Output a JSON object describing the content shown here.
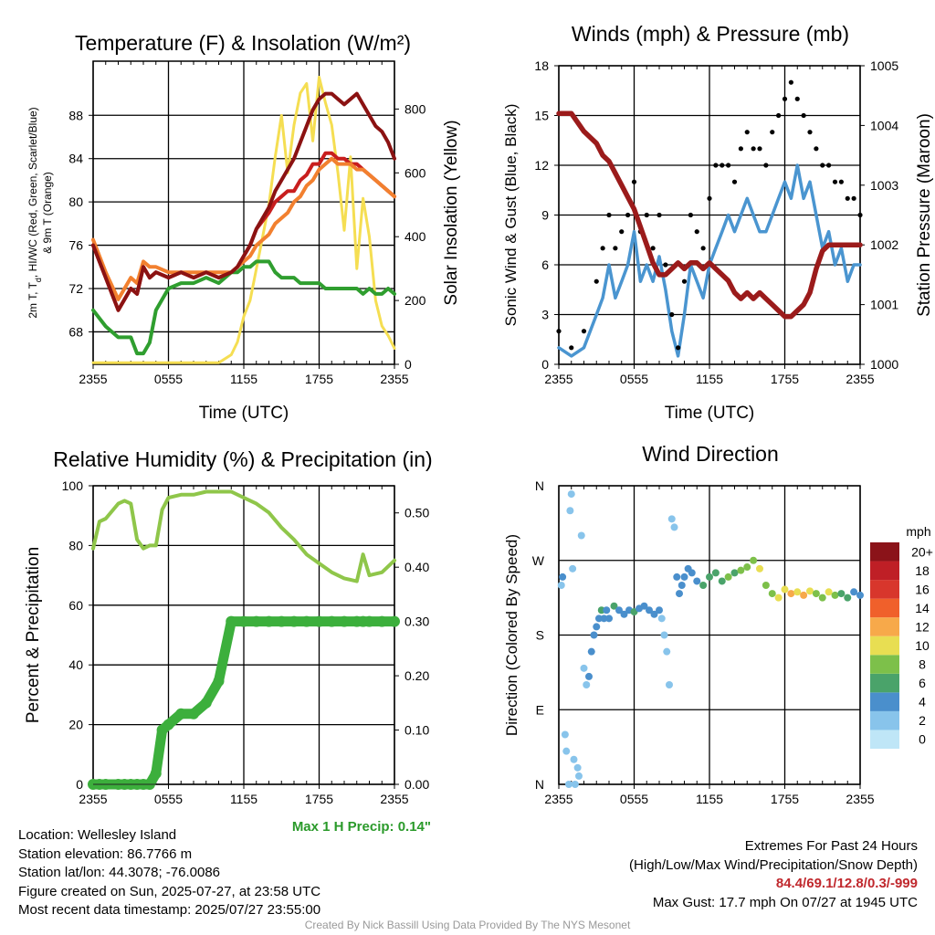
{
  "colors": {
    "temp_2m": "#c81e1e",
    "dewpoint": "#8b1212",
    "hiwc": "#2f9e2f",
    "temp_9m": "#f2802f",
    "insolation": "#f5de52",
    "wind_sonic": "#4a95d0",
    "gust": "#000000",
    "pressure": "#9b1b1b",
    "rh": "#8fc64a",
    "precip": "#3caf3c",
    "maxprecip_text": "#2a9a2a",
    "extremes_text": "#c0282d"
  },
  "chart_data": [
    {
      "id": "temperature",
      "type": "line",
      "title": "Temperature (F) & Insolation (W/m²)",
      "xlabel": "Time (UTC)",
      "ylabel": "2m T, Td, HI/WC (Red, Green, Scarlet/Blue) & 9m T (Orange)",
      "ylabel_line1": "2m T, T",
      "ylabel_sub": "d",
      "ylabel_line1_rest": ", HI/WC (Red, Green, Scarlet/Blue)",
      "ylabel_line2": "& 9m T (Orange)",
      "y2label": "Solar Insolation (Yellow)",
      "x_ticks": [
        "2355",
        "0555",
        "1155",
        "1755",
        "2355"
      ],
      "ylim": [
        65,
        93
      ],
      "y_ticks": [
        "68",
        "72",
        "76",
        "80",
        "84",
        "88"
      ],
      "y2lim": [
        0,
        950
      ],
      "y2_ticks": [
        "0",
        "200",
        "400",
        "600",
        "800"
      ],
      "x_hours": [
        0,
        1,
        2,
        3,
        3.5,
        4,
        4.5,
        5,
        6,
        7,
        8,
        9,
        10,
        11,
        11.5,
        12,
        12.5,
        13,
        14,
        14.5,
        15,
        15.5,
        16,
        16.5,
        17,
        17.5,
        18,
        18.5,
        19,
        19.5,
        20,
        20.5,
        21,
        21.5,
        22,
        22.5,
        23,
        23.5,
        24
      ],
      "series": [
        {
          "name": "2m T",
          "color_key": "temp_2m",
          "values": [
            76,
            73,
            70,
            72,
            71.5,
            74,
            73,
            73.5,
            73,
            73.5,
            73,
            73.5,
            73,
            73.5,
            74,
            75,
            76,
            77.5,
            79,
            80,
            80.5,
            81,
            81,
            82,
            82.5,
            83.5,
            83.5,
            84.5,
            84.5,
            84,
            84,
            83.5,
            83.5,
            83,
            82.5,
            82,
            81.5,
            81,
            80.5
          ]
        },
        {
          "name": "9m T",
          "color_key": "temp_9m",
          "values": [
            76.5,
            73.5,
            71,
            73,
            72.5,
            74.5,
            74,
            74,
            73.5,
            73.5,
            73.5,
            73.5,
            73.5,
            73.5,
            74,
            74.5,
            75,
            76,
            77,
            78,
            78.5,
            79,
            80,
            80.5,
            81.5,
            82,
            83,
            83.5,
            84,
            83.5,
            83.5,
            83.5,
            83,
            83,
            82.5,
            82,
            81.5,
            81,
            80.5
          ]
        },
        {
          "name": "Td",
          "color_key": "hiwc",
          "values": [
            70,
            68.5,
            67.5,
            67.5,
            66,
            66,
            67,
            70,
            72,
            72.5,
            72.5,
            73,
            72.5,
            73.5,
            73.5,
            74,
            74,
            74.5,
            74.5,
            73.5,
            73,
            73,
            73,
            72.5,
            72.5,
            72.5,
            72.5,
            72,
            72,
            72,
            72,
            72,
            72,
            71.5,
            72,
            71.5,
            71.5,
            72,
            71.5
          ]
        },
        {
          "name": "HI",
          "color_key": "dewpoint",
          "values": [
            76,
            73,
            70,
            72,
            71.5,
            74,
            73,
            73.5,
            73,
            73.5,
            73,
            73.5,
            73,
            73.5,
            74,
            75,
            76,
            77.5,
            79.5,
            81,
            82,
            83,
            84,
            85.5,
            87,
            88.5,
            89.5,
            90,
            90,
            89.5,
            89,
            89.5,
            90,
            89,
            88,
            87,
            86.5,
            85.5,
            84
          ]
        },
        {
          "name": "Insolation",
          "color_key": "insolation",
          "axis": "y2",
          "values": [
            5,
            5,
            5,
            5,
            5,
            5,
            5,
            5,
            5,
            5,
            5,
            5,
            5,
            30,
            70,
            150,
            200,
            300,
            500,
            650,
            780,
            600,
            750,
            850,
            880,
            700,
            900,
            820,
            750,
            600,
            420,
            650,
            300,
            520,
            400,
            200,
            120,
            90,
            50
          ]
        }
      ]
    },
    {
      "id": "winds",
      "type": "line",
      "title": "Winds (mph) & Pressure (mb)",
      "xlabel": "Time (UTC)",
      "ylabel": "Sonic Wind & Gust (Blue, Black)",
      "y2label": "Station Pressure (Maroon)",
      "x_ticks": [
        "2355",
        "0555",
        "1155",
        "1755",
        "2355"
      ],
      "ylim": [
        0,
        18
      ],
      "y_ticks": [
        "0",
        "3",
        "6",
        "9",
        "12",
        "15",
        "18"
      ],
      "y2lim": [
        1000,
        1005
      ],
      "y2_ticks": [
        "1000",
        "1001",
        "1002",
        "1003",
        "1004",
        "1005"
      ],
      "x_hours": [
        0,
        1,
        2,
        3,
        3.5,
        4,
        4.5,
        5,
        5.5,
        6,
        6.5,
        7,
        7.5,
        8,
        8.5,
        9,
        9.5,
        10,
        10.5,
        11,
        11.5,
        12,
        12.5,
        13,
        13.5,
        14,
        14.5,
        15,
        15.5,
        16,
        16.5,
        17,
        17.5,
        18,
        18.5,
        19,
        19.5,
        20,
        20.5,
        21,
        21.5,
        22,
        22.5,
        23,
        23.5,
        24
      ],
      "series": [
        {
          "name": "Sonic Wind",
          "color_key": "wind_sonic",
          "values": [
            1,
            0.5,
            1,
            3,
            4,
            6,
            4,
            5,
            6,
            8,
            5,
            6,
            5,
            6.5,
            4.5,
            2,
            0.5,
            3,
            6,
            5,
            4,
            6,
            7,
            8,
            9,
            8,
            9,
            10,
            9,
            8,
            8,
            9,
            10,
            11,
            10,
            12,
            10,
            11,
            9,
            7,
            8,
            6,
            7,
            5,
            6,
            6
          ]
        },
        {
          "name": "Gust",
          "color_key": "gust",
          "values": [
            2,
            1,
            2,
            5,
            7,
            9,
            7,
            8,
            9,
            11,
            8,
            9,
            7,
            9,
            6,
            3,
            1,
            5,
            9,
            8,
            7,
            10,
            12,
            12,
            12,
            11,
            13,
            14,
            13,
            13,
            12,
            14,
            15,
            16,
            17,
            16,
            15,
            14,
            13,
            12,
            12,
            11,
            11,
            10,
            10,
            9
          ]
        },
        {
          "name": "Pressure",
          "color_key": "pressure",
          "axis": "y2",
          "values": [
            1004.2,
            1004.2,
            1003.9,
            1003.7,
            1003.5,
            1003.4,
            1003.2,
            1003,
            1002.8,
            1002.6,
            1002.3,
            1002,
            1001.7,
            1001.5,
            1001.5,
            1001.6,
            1001.7,
            1001.6,
            1001.7,
            1001.7,
            1001.6,
            1001.7,
            1001.6,
            1001.5,
            1001.4,
            1001.2,
            1001.1,
            1001.2,
            1001.1,
            1001.2,
            1001.1,
            1001.0,
            1000.9,
            1000.8,
            1000.8,
            1000.9,
            1001.0,
            1001.2,
            1001.6,
            1001.9,
            1002.0,
            1002.0,
            1002.0,
            1002.0,
            1002.0,
            1002.0
          ]
        }
      ]
    },
    {
      "id": "humidity",
      "type": "line",
      "title": "Relative Humidity (%) & Precipitation (in)",
      "ylabel": "Percent & Precipitation",
      "x_ticks": [
        "2355",
        "0555",
        "1155",
        "1755",
        "2355"
      ],
      "ylim": [
        0,
        100
      ],
      "y_ticks": [
        "0",
        "20",
        "40",
        "60",
        "80",
        "100"
      ],
      "y2lim": [
        0,
        0.55
      ],
      "y2_ticks": [
        "0.00",
        "0.10",
        "0.20",
        "0.30",
        "0.40",
        "0.50"
      ],
      "note": "Max 1 H Precip: 0.14\"",
      "x_hours": [
        0,
        0.5,
        1,
        2,
        2.5,
        3,
        3.5,
        4,
        4.5,
        5,
        5.5,
        6,
        7,
        8,
        9,
        10,
        11,
        12,
        13,
        14,
        15,
        16,
        17,
        18,
        19,
        20,
        21,
        21.5,
        22,
        23,
        24
      ],
      "series": [
        {
          "name": "RH",
          "color_key": "rh",
          "values": [
            79,
            88,
            89,
            94,
            95,
            94,
            82,
            79,
            80,
            80,
            92,
            96,
            97,
            97,
            98,
            98,
            98,
            96,
            94,
            91,
            86,
            82,
            77,
            74,
            71,
            69,
            68,
            77,
            70,
            71,
            75
          ]
        },
        {
          "name": "Precip",
          "color_key": "precip",
          "axis": "y2",
          "values": [
            0,
            0,
            0,
            0,
            0,
            0,
            0,
            0,
            0,
            0.02,
            0.1,
            0.11,
            0.13,
            0.13,
            0.15,
            0.19,
            0.3,
            0.3,
            0.3,
            0.3,
            0.3,
            0.3,
            0.3,
            0.3,
            0.3,
            0.3,
            0.3,
            0.3,
            0.3,
            0.3,
            0.3
          ]
        }
      ]
    },
    {
      "id": "wind-direction",
      "type": "scatter",
      "title": "Wind Direction",
      "ylabel": "Direction (Colored By Speed)",
      "x_ticks": [
        "2355",
        "0555",
        "1155",
        "1755",
        "2355"
      ],
      "ylim": [
        0,
        360
      ],
      "y_ticks": [
        "N",
        "E",
        "S",
        "W",
        "N"
      ],
      "colorbar_title": "mph",
      "colorbar_labels": [
        "0",
        "2",
        "4",
        "6",
        "8",
        "10",
        "12",
        "14",
        "16",
        "18",
        "20+"
      ],
      "colorbar_colors": [
        "#bfe6f7",
        "#88c4eb",
        "#4a8fcc",
        "#4aa36a",
        "#7dc04a",
        "#e8de52",
        "#f7a94a",
        "#f0602b",
        "#d8362c",
        "#bf1f26",
        "#8b1319"
      ],
      "points": [
        [
          0.2,
          240,
          2
        ],
        [
          0.3,
          250,
          3
        ],
        [
          0.5,
          60,
          1
        ],
        [
          0.6,
          40,
          1
        ],
        [
          0.8,
          0,
          1
        ],
        [
          0.9,
          330,
          1
        ],
        [
          1.0,
          350,
          1
        ],
        [
          1.1,
          260,
          1
        ],
        [
          1.2,
          30,
          1
        ],
        [
          1.3,
          0,
          1
        ],
        [
          1.5,
          20,
          1
        ],
        [
          1.6,
          10,
          1
        ],
        [
          1.8,
          300,
          1
        ],
        [
          2.0,
          140,
          2
        ],
        [
          2.2,
          120,
          2
        ],
        [
          2.4,
          130,
          3
        ],
        [
          2.6,
          160,
          3
        ],
        [
          2.8,
          180,
          4
        ],
        [
          3.0,
          190,
          4
        ],
        [
          3.2,
          200,
          3
        ],
        [
          3.4,
          210,
          5
        ],
        [
          3.6,
          200,
          4
        ],
        [
          3.8,
          210,
          3
        ],
        [
          4.0,
          200,
          4
        ],
        [
          4.4,
          215,
          5
        ],
        [
          4.8,
          210,
          4
        ],
        [
          5.2,
          205,
          3
        ],
        [
          5.6,
          210,
          4
        ],
        [
          6.0,
          208,
          5
        ],
        [
          6.4,
          212,
          4
        ],
        [
          6.8,
          215,
          3
        ],
        [
          7.2,
          210,
          4
        ],
        [
          7.6,
          205,
          4
        ],
        [
          8.0,
          210,
          3
        ],
        [
          8.2,
          200,
          2
        ],
        [
          8.4,
          180,
          1
        ],
        [
          8.6,
          160,
          1
        ],
        [
          8.8,
          120,
          1
        ],
        [
          9.0,
          320,
          1
        ],
        [
          9.2,
          310,
          1
        ],
        [
          9.4,
          250,
          3
        ],
        [
          9.6,
          230,
          4
        ],
        [
          9.8,
          240,
          4
        ],
        [
          10.0,
          250,
          3
        ],
        [
          10.3,
          260,
          4
        ],
        [
          10.6,
          255,
          3
        ],
        [
          11.0,
          245,
          4
        ],
        [
          11.5,
          240,
          5
        ],
        [
          12.0,
          250,
          6
        ],
        [
          12.5,
          255,
          5
        ],
        [
          13.0,
          245,
          6
        ],
        [
          13.5,
          250,
          7
        ],
        [
          14.0,
          255,
          6
        ],
        [
          14.5,
          258,
          7
        ],
        [
          15.0,
          262,
          7
        ],
        [
          15.5,
          270,
          8
        ],
        [
          16.0,
          260,
          9
        ],
        [
          16.5,
          240,
          7
        ],
        [
          17.0,
          230,
          8
        ],
        [
          17.5,
          225,
          10
        ],
        [
          18.0,
          235,
          9
        ],
        [
          18.5,
          230,
          11
        ],
        [
          19.0,
          232,
          10
        ],
        [
          19.5,
          228,
          11
        ],
        [
          20.0,
          233,
          9
        ],
        [
          20.5,
          230,
          8
        ],
        [
          21.0,
          225,
          7
        ],
        [
          21.5,
          232,
          9
        ],
        [
          22.0,
          228,
          8
        ],
        [
          22.5,
          230,
          6
        ],
        [
          23.0,
          225,
          5
        ],
        [
          23.5,
          232,
          4
        ],
        [
          24.0,
          228,
          4
        ]
      ]
    }
  ],
  "station": {
    "location": "Location: Wellesley Island",
    "elevation": "Station elevation: 86.7766 m",
    "latlon": "Station lat/lon: 44.3078; -76.0086",
    "created": "Figure created on Sun, 2025-07-27, at 23:58 UTC",
    "recent": "Most recent data timestamp: 2025/07/27 23:55:00"
  },
  "extremes": {
    "title": "Extremes For Past 24 Hours",
    "subtitle": "(High/Low/Max Wind/Precipitation/Snow Depth)",
    "values": "84.4/69.1/12.8/0.3/-999",
    "gust": "Max Gust: 17.7 mph On 07/27 at 1945 UTC"
  },
  "credit": "Created By Nick Bassill Using Data Provided By The NYS Mesonet"
}
